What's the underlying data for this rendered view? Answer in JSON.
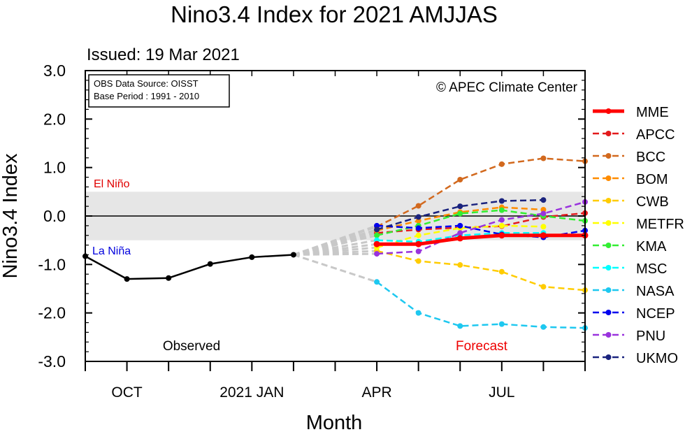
{
  "chart_data": {
    "type": "line",
    "title": "Nino3.4 Index for 2021 AMJJAS",
    "issued": "Issued: 19 Mar 2021",
    "source_box": [
      "OBS Data Source: OISST",
      "Base Period : 1991 - 2010"
    ],
    "credit": "© APEC Climate Center",
    "xlabel": "Month",
    "ylabel": "Nino3.4 Index",
    "ylim": [
      -3.0,
      3.0
    ],
    "xlim": [
      0,
      12
    ],
    "y_ticks": [
      "-3.0",
      "-2.0",
      "-1.0",
      "0.0",
      "1.0",
      "2.0",
      "3.0"
    ],
    "x_tick_labels": [
      {
        "x": 1,
        "label": "OCT"
      },
      {
        "x": 4,
        "label": "2021 JAN"
      },
      {
        "x": 7,
        "label": "APR"
      },
      {
        "x": 10,
        "label": "JUL"
      }
    ],
    "neutral_band": [
      -0.5,
      0.5
    ],
    "el_nino_label": "El Niño",
    "la_nina_label": "La Niña",
    "observed_label": "Observed",
    "forecast_label": "Forecast",
    "observed": {
      "x": [
        0,
        1,
        2,
        3,
        4,
        5
      ],
      "y": [
        -0.83,
        -1.3,
        -1.28,
        -0.99,
        -0.85,
        -0.8
      ],
      "color": "#000000"
    },
    "series": [
      {
        "name": "MME",
        "color": "#ff0000",
        "values": [
          -0.58,
          -0.58,
          -0.46,
          -0.4,
          -0.4,
          -0.4
        ]
      },
      {
        "name": "APCC",
        "color": "#e31a1c",
        "values": [
          -0.35,
          -0.28,
          -0.24,
          -0.21,
          -0.02,
          0.06
        ]
      },
      {
        "name": "BCC",
        "color": "#d2691e",
        "values": [
          -0.22,
          0.21,
          0.75,
          1.07,
          1.19,
          1.13
        ]
      },
      {
        "name": "BOM",
        "color": "#ff8c00",
        "values": [
          -0.3,
          -0.1,
          0.08,
          0.18,
          0.13,
          null
        ]
      },
      {
        "name": "CWB",
        "color": "#ffcc00",
        "values": [
          -0.72,
          -0.93,
          -1.01,
          -1.15,
          -1.46,
          -1.53
        ]
      },
      {
        "name": "METFR",
        "color": "#ffff00",
        "values": [
          -0.65,
          -0.4,
          -0.25,
          -0.2,
          -0.22,
          null
        ]
      },
      {
        "name": "KMA",
        "color": "#33ee33",
        "values": [
          -0.4,
          -0.2,
          0.05,
          0.12,
          0.0,
          -0.1
        ]
      },
      {
        "name": "MSC",
        "color": "#00ffff",
        "values": [
          -0.5,
          -0.53,
          -0.4,
          -0.35,
          -0.35,
          null
        ]
      },
      {
        "name": "NASA",
        "color": "#1ec8f0",
        "values": [
          -1.36,
          -2.0,
          -2.27,
          -2.23,
          -2.29,
          -2.31
        ]
      },
      {
        "name": "NCEP",
        "color": "#0000ee",
        "values": [
          -0.2,
          -0.25,
          -0.2,
          -0.38,
          -0.44,
          -0.3
        ]
      },
      {
        "name": "PNU",
        "color": "#9933dd",
        "values": [
          -0.78,
          -0.73,
          -0.35,
          -0.08,
          0.05,
          0.29
        ]
      },
      {
        "name": "UKMO",
        "color": "#1a237e",
        "values": [
          -0.28,
          -0.02,
          0.2,
          0.31,
          0.33,
          null
        ]
      }
    ],
    "forecast_x": [
      7,
      8,
      9,
      10,
      11,
      12
    ],
    "legend_position": "right"
  }
}
